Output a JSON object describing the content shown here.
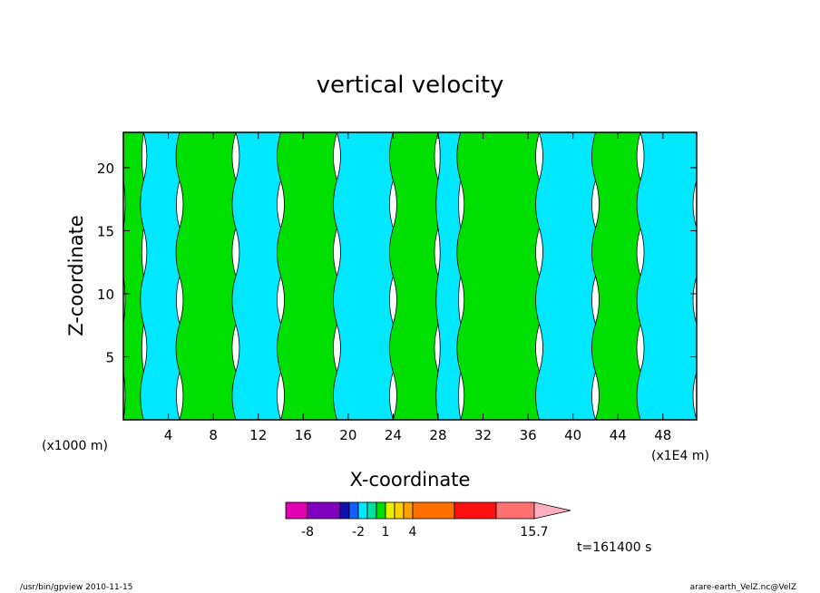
{
  "chart_data": {
    "type": "heatmap",
    "title": "vertical velocity",
    "xlabel": "X-coordinate",
    "ylabel": "Z-coordinate",
    "x_unit": "(x1E4 m)",
    "y_unit": "(x1000 m)",
    "xlim": [
      0,
      51
    ],
    "ylim": [
      0,
      22.8
    ],
    "x_ticks": [
      4,
      8,
      12,
      16,
      20,
      24,
      28,
      32,
      36,
      40,
      44,
      48
    ],
    "y_ticks": [
      5,
      10,
      15,
      20
    ],
    "grid": false,
    "fill_colors": {
      "negative": "#00e8ff",
      "positive": "#00e000"
    },
    "regions": [
      {
        "sign": "positive",
        "x": [
          0,
          1.8
        ],
        "y": [
          0,
          22.8
        ]
      },
      {
        "sign": "negative",
        "x": [
          1.8,
          5
        ],
        "y": [
          0,
          22.8
        ]
      },
      {
        "sign": "positive",
        "x": [
          5,
          10
        ],
        "y": [
          0,
          22.8
        ]
      },
      {
        "sign": "negative",
        "x": [
          10,
          14
        ],
        "y": [
          0,
          22.8
        ]
      },
      {
        "sign": "positive",
        "x": [
          14,
          19
        ],
        "y": [
          0,
          22.8
        ]
      },
      {
        "sign": "negative",
        "x": [
          19,
          24
        ],
        "y": [
          0,
          22.8
        ]
      },
      {
        "sign": "positive",
        "x": [
          24,
          28
        ],
        "y": [
          0,
          22.8
        ]
      },
      {
        "sign": "negative",
        "x": [
          28,
          30
        ],
        "y": [
          0,
          22.8
        ]
      },
      {
        "sign": "positive",
        "x": [
          30,
          37
        ],
        "y": [
          0,
          22.8
        ]
      },
      {
        "sign": "negative",
        "x": [
          37,
          42
        ],
        "y": [
          0,
          22.8
        ]
      },
      {
        "sign": "positive",
        "x": [
          42,
          46
        ],
        "y": [
          0,
          22.8
        ]
      },
      {
        "sign": "negative",
        "x": [
          46,
          51
        ],
        "y": [
          0,
          22.8
        ]
      }
    ],
    "colorbar": {
      "labels": [
        {
          "text": "-8",
          "value": -8
        },
        {
          "text": "-2",
          "value": -2
        },
        {
          "text": "1",
          "value": 1
        },
        {
          "text": "4",
          "value": 4
        },
        {
          "text": "15.7",
          "value": 15.7
        }
      ],
      "bins": [
        {
          "from": -10,
          "to": -8,
          "color": "#e000b0"
        },
        {
          "from": -8,
          "to": -4,
          "color": "#8000c0"
        },
        {
          "from": -4,
          "to": -3,
          "color": "#1010b0"
        },
        {
          "from": -3,
          "to": -2,
          "color": "#1060ff"
        },
        {
          "from": -2,
          "to": -1,
          "color": "#00e8ff"
        },
        {
          "from": -1,
          "to": 0,
          "color": "#00e0a0"
        },
        {
          "from": 0,
          "to": 1,
          "color": "#00e000"
        },
        {
          "from": 1,
          "to": 2,
          "color": "#e8f000"
        },
        {
          "from": 2,
          "to": 3,
          "color": "#ffd000"
        },
        {
          "from": 3,
          "to": 4,
          "color": "#ffa000"
        },
        {
          "from": 4,
          "to": 8,
          "color": "#ff7000"
        },
        {
          "from": 8,
          "to": 12,
          "color": "#ff1010"
        },
        {
          "from": 12,
          "to": 15.7,
          "color": "#ff7070"
        }
      ],
      "extend_color": "#ffb0c0"
    }
  },
  "time_label": "t=161400 s",
  "footer": {
    "left": "/usr/bin/gpview   2010-11-15",
    "right": "arare-earth_VelZ.nc@VelZ"
  }
}
